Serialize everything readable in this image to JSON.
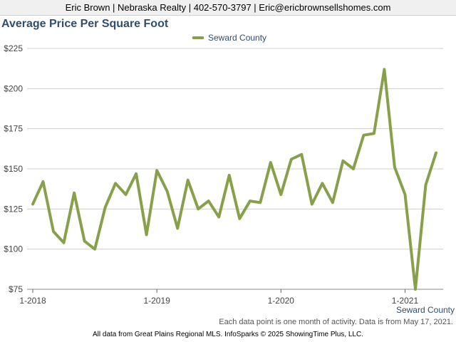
{
  "header": {
    "contact_line": "Eric Brown | Nebraska Realty | 402-570-3797 | Eric@ericbrownsellshomes.com"
  },
  "chart_data": {
    "type": "line",
    "title": "Average Price Per Square Foot",
    "xlabel": "",
    "ylabel": "",
    "ylim": [
      75,
      225
    ],
    "y_ticks": [
      75,
      100,
      125,
      150,
      175,
      200,
      225
    ],
    "y_tick_labels": [
      "$75",
      "$100",
      "$125",
      "$150",
      "$175",
      "$200",
      "$225"
    ],
    "x_ticks": [
      "2018-01",
      "2019-01",
      "2020-01",
      "2021-01"
    ],
    "x_tick_labels": [
      "1-2018",
      "1-2019",
      "1-2020",
      "1-2021"
    ],
    "x": [
      "2018-01",
      "2018-02",
      "2018-03",
      "2018-04",
      "2018-05",
      "2018-06",
      "2018-07",
      "2018-08",
      "2018-09",
      "2018-10",
      "2018-11",
      "2018-12",
      "2019-01",
      "2019-02",
      "2019-03",
      "2019-04",
      "2019-05",
      "2019-06",
      "2019-07",
      "2019-08",
      "2019-09",
      "2019-10",
      "2019-11",
      "2019-12",
      "2020-01",
      "2020-02",
      "2020-03",
      "2020-04",
      "2020-05",
      "2020-06",
      "2020-07",
      "2020-08",
      "2020-09",
      "2020-10",
      "2020-11",
      "2020-12",
      "2021-01",
      "2021-02",
      "2021-03",
      "2021-04"
    ],
    "series": [
      {
        "name": "Seward County",
        "color": "#88a04a",
        "values": [
          128,
          142,
          111,
          104,
          135,
          105,
          100,
          126,
          141,
          134,
          147,
          109,
          149,
          136,
          113,
          143,
          125,
          130,
          120,
          146,
          119,
          130,
          129,
          154,
          134,
          156,
          159,
          128,
          141,
          129,
          155,
          150,
          171,
          172,
          212,
          151,
          134,
          75,
          140,
          160
        ]
      }
    ],
    "legend_position": "top-center",
    "grid": true
  },
  "corner_label": "Seward County",
  "note": "Each data point is one month of activity. Data is from May 17, 2021.",
  "footer": "All data from Great Plains Regional MLS. InfoSparks © 2025 ShowingTime Plus, LLC."
}
